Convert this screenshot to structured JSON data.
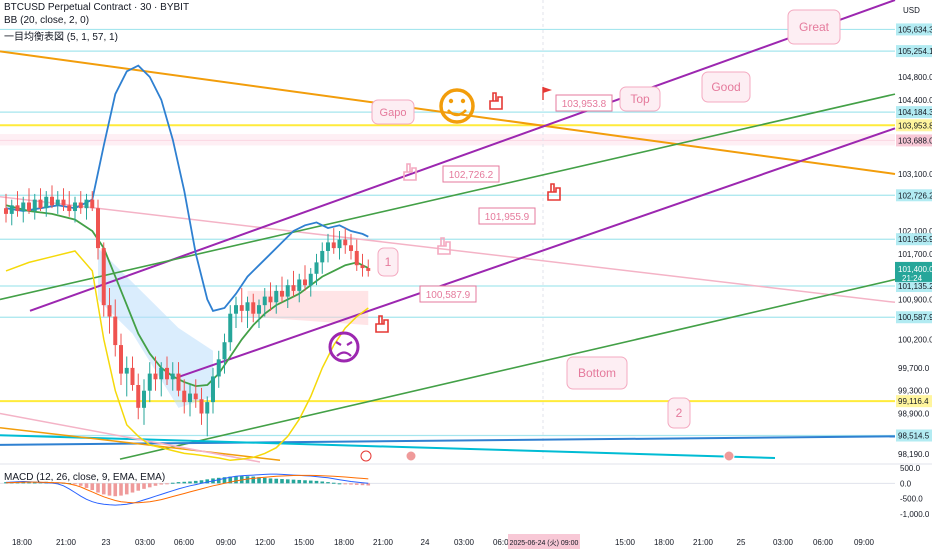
{
  "header": {
    "title": "BTCUSD Perpetual Contract · 30 · BYBIT",
    "indicator_bb": "BB (20, close, 2, 0)",
    "indicator_ichimoku": "一目均衡表図 (5, 1, 57, 1)",
    "indicator_macd": "MACD (12, 26, close, 9, EMA, EMA)"
  },
  "colors": {
    "bg": "#ffffff",
    "candle_up": "#26a69a",
    "candle_down": "#ef5350",
    "bb_upper": "#2f80d1",
    "bb_basis": "#43a047",
    "bb_lower": "#f5d90a",
    "orange_line": "#f29d0b",
    "purple_channel": "#9c27b0",
    "green_line": "#43a047",
    "pink_line": "#f4b3c6",
    "blue_line": "#2f80d1",
    "cyan_line": "#00bcd4",
    "hline_cyan": "#a6e6ee",
    "hline_yellow": "#ffeb3b",
    "hline_pink": "#f8c8d6",
    "axis_text": "#131722"
  },
  "chart_data": {
    "type": "candlestick",
    "symbol": "BTCUSD Perpetual Contract",
    "timeframe": "30",
    "exchange": "BYBIT",
    "y_unit": "USD",
    "ylim": [
      98050,
      106150
    ],
    "y_ticks": [
      104800.0,
      104400.0,
      103100.0,
      102100.0,
      101700.0,
      100900.0,
      100200.0,
      99700.0,
      99300.0,
      98900.0,
      98190.0
    ],
    "price_labels": [
      {
        "value": 105634.3,
        "style": "cyan"
      },
      {
        "value": 105254.1,
        "style": "cyan"
      },
      {
        "value": 104184.3,
        "style": "cyan"
      },
      {
        "value": 103953.8,
        "style": "yellow"
      },
      {
        "value": 103688.0,
        "style": "pink"
      },
      {
        "value": 102726.2,
        "style": "cyan"
      },
      {
        "value": 101955.9,
        "style": "cyan"
      },
      {
        "value": 101135.2,
        "style": "cyan"
      },
      {
        "value": 100587.9,
        "style": "cyan"
      },
      {
        "value": 99116.4,
        "style": "yellow"
      },
      {
        "value": 98514.5,
        "style": "cyan"
      }
    ],
    "current_price": {
      "value": "101,400.0",
      "countdown": "21:24"
    },
    "x_ticks": [
      "18:00",
      "21:00",
      "23",
      "03:00",
      "06:00",
      "09:00",
      "12:00",
      "15:00",
      "18:00",
      "21:00",
      "24",
      "03:00",
      "06:00",
      "09:00",
      "15:00",
      "18:00",
      "21:00",
      "25",
      "03:00",
      "06:00",
      "09:00"
    ],
    "x_highlight": {
      "label": "2025-06-24 (火)",
      "time": "09:00"
    },
    "candles": [
      {
        "o": 102500,
        "h": 102750,
        "l": 102250,
        "c": 102400
      },
      {
        "o": 102400,
        "h": 102650,
        "l": 102200,
        "c": 102550
      },
      {
        "o": 102550,
        "h": 102800,
        "l": 102350,
        "c": 102450
      },
      {
        "o": 102450,
        "h": 102700,
        "l": 102250,
        "c": 102600
      },
      {
        "o": 102600,
        "h": 102850,
        "l": 102400,
        "c": 102450
      },
      {
        "o": 102450,
        "h": 102750,
        "l": 102300,
        "c": 102650
      },
      {
        "o": 102650,
        "h": 102850,
        "l": 102450,
        "c": 102500
      },
      {
        "o": 102500,
        "h": 102800,
        "l": 102350,
        "c": 102700
      },
      {
        "o": 102700,
        "h": 102900,
        "l": 102500,
        "c": 102550
      },
      {
        "o": 102550,
        "h": 102800,
        "l": 102400,
        "c": 102650
      },
      {
        "o": 102650,
        "h": 102850,
        "l": 102450,
        "c": 102550
      },
      {
        "o": 102550,
        "h": 102800,
        "l": 102350,
        "c": 102450
      },
      {
        "o": 102450,
        "h": 102700,
        "l": 102250,
        "c": 102600
      },
      {
        "o": 102600,
        "h": 102800,
        "l": 102400,
        "c": 102500
      },
      {
        "o": 102500,
        "h": 102750,
        "l": 102300,
        "c": 102650
      },
      {
        "o": 102650,
        "h": 102800,
        "l": 102450,
        "c": 102500
      },
      {
        "o": 102500,
        "h": 102650,
        "l": 101600,
        "c": 101800
      },
      {
        "o": 101800,
        "h": 101900,
        "l": 100600,
        "c": 100800
      },
      {
        "o": 100800,
        "h": 101100,
        "l": 100300,
        "c": 100600
      },
      {
        "o": 100600,
        "h": 100900,
        "l": 99900,
        "c": 100100
      },
      {
        "o": 100100,
        "h": 100300,
        "l": 99400,
        "c": 99600
      },
      {
        "o": 99600,
        "h": 99900,
        "l": 99200,
        "c": 99700
      },
      {
        "o": 99700,
        "h": 99900,
        "l": 99300,
        "c": 99400
      },
      {
        "o": 99400,
        "h": 99600,
        "l": 98800,
        "c": 99000
      },
      {
        "o": 99000,
        "h": 99500,
        "l": 98700,
        "c": 99300
      },
      {
        "o": 99300,
        "h": 99800,
        "l": 99100,
        "c": 99600
      },
      {
        "o": 99600,
        "h": 99900,
        "l": 99300,
        "c": 99500
      },
      {
        "o": 99500,
        "h": 99800,
        "l": 99200,
        "c": 99700
      },
      {
        "o": 99700,
        "h": 99900,
        "l": 99400,
        "c": 99500
      },
      {
        "o": 99500,
        "h": 99800,
        "l": 99300,
        "c": 99600
      },
      {
        "o": 99600,
        "h": 99800,
        "l": 99200,
        "c": 99300
      },
      {
        "o": 99300,
        "h": 99500,
        "l": 98900,
        "c": 99100
      },
      {
        "o": 99100,
        "h": 99400,
        "l": 98850,
        "c": 99250
      },
      {
        "o": 99250,
        "h": 99500,
        "l": 99000,
        "c": 99150
      },
      {
        "o": 99150,
        "h": 99350,
        "l": 98700,
        "c": 98900
      },
      {
        "o": 98900,
        "h": 99200,
        "l": 98500,
        "c": 99100
      },
      {
        "o": 99100,
        "h": 99700,
        "l": 98900,
        "c": 99550
      },
      {
        "o": 99550,
        "h": 100000,
        "l": 99350,
        "c": 99850
      },
      {
        "o": 99850,
        "h": 100300,
        "l": 99600,
        "c": 100150
      },
      {
        "o": 100150,
        "h": 100800,
        "l": 100000,
        "c": 100650
      },
      {
        "o": 100650,
        "h": 100950,
        "l": 100400,
        "c": 100800
      },
      {
        "o": 100800,
        "h": 101100,
        "l": 100500,
        "c": 100700
      },
      {
        "o": 100700,
        "h": 100950,
        "l": 100400,
        "c": 100850
      },
      {
        "o": 100850,
        "h": 101000,
        "l": 100500,
        "c": 100650
      },
      {
        "o": 100650,
        "h": 100900,
        "l": 100400,
        "c": 100800
      },
      {
        "o": 100800,
        "h": 101100,
        "l": 100600,
        "c": 100950
      },
      {
        "o": 100950,
        "h": 101200,
        "l": 100700,
        "c": 100850
      },
      {
        "o": 100850,
        "h": 101150,
        "l": 100650,
        "c": 101050
      },
      {
        "o": 101050,
        "h": 101300,
        "l": 100850,
        "c": 100950
      },
      {
        "o": 100950,
        "h": 101250,
        "l": 100750,
        "c": 101150
      },
      {
        "o": 101150,
        "h": 101400,
        "l": 100950,
        "c": 101050
      },
      {
        "o": 101050,
        "h": 101350,
        "l": 100850,
        "c": 101250
      },
      {
        "o": 101250,
        "h": 101500,
        "l": 101050,
        "c": 101150
      },
      {
        "o": 101150,
        "h": 101450,
        "l": 100950,
        "c": 101350
      },
      {
        "o": 101350,
        "h": 101700,
        "l": 101150,
        "c": 101550
      },
      {
        "o": 101550,
        "h": 101900,
        "l": 101350,
        "c": 101750
      },
      {
        "o": 101750,
        "h": 102050,
        "l": 101550,
        "c": 101900
      },
      {
        "o": 101900,
        "h": 102150,
        "l": 101700,
        "c": 101800
      },
      {
        "o": 101800,
        "h": 102100,
        "l": 101600,
        "c": 101950
      },
      {
        "o": 101950,
        "h": 102150,
        "l": 101700,
        "c": 101850
      },
      {
        "o": 101850,
        "h": 102050,
        "l": 101600,
        "c": 101750
      },
      {
        "o": 101750,
        "h": 101950,
        "l": 101400,
        "c": 101500
      },
      {
        "o": 101500,
        "h": 101700,
        "l": 101300,
        "c": 101450
      },
      {
        "o": 101450,
        "h": 101600,
        "l": 101300,
        "c": 101400
      }
    ],
    "bands": {
      "upper": [
        [
          0,
          102500
        ],
        [
          3,
          102450
        ],
        [
          6,
          102500
        ],
        [
          9,
          102550
        ],
        [
          12,
          102500
        ],
        [
          15,
          102650
        ],
        [
          17,
          103600
        ],
        [
          19,
          104500
        ],
        [
          21,
          104900
        ],
        [
          23,
          105000
        ],
        [
          25,
          104800
        ],
        [
          27,
          104400
        ],
        [
          29,
          103700
        ],
        [
          31,
          102800
        ],
        [
          33,
          101700
        ],
        [
          35,
          100900
        ],
        [
          36,
          100700
        ],
        [
          38,
          100750
        ],
        [
          40,
          101000
        ],
        [
          42,
          101300
        ],
        [
          44,
          101500
        ],
        [
          46,
          101700
        ],
        [
          48,
          101900
        ],
        [
          50,
          102100
        ],
        [
          52,
          102200
        ],
        [
          54,
          102250
        ],
        [
          56,
          102150
        ],
        [
          58,
          102200
        ],
        [
          60,
          102100
        ],
        [
          62,
          102050
        ],
        [
          63,
          102000
        ]
      ],
      "basis": [
        [
          0,
          102550
        ],
        [
          4,
          102450
        ],
        [
          8,
          102400
        ],
        [
          12,
          102300
        ],
        [
          15,
          102100
        ],
        [
          17,
          101800
        ],
        [
          19,
          101300
        ],
        [
          21,
          100800
        ],
        [
          23,
          100300
        ],
        [
          25,
          99950
        ],
        [
          27,
          99700
        ],
        [
          29,
          99550
        ],
        [
          31,
          99450
        ],
        [
          33,
          99380
        ],
        [
          35,
          99400
        ],
        [
          37,
          99600
        ],
        [
          39,
          99900
        ],
        [
          41,
          100200
        ],
        [
          43,
          100450
        ],
        [
          45,
          100650
        ],
        [
          47,
          100800
        ],
        [
          49,
          100900
        ],
        [
          51,
          101000
        ],
        [
          53,
          101150
        ],
        [
          55,
          101300
        ],
        [
          57,
          101400
        ],
        [
          59,
          101500
        ],
        [
          61,
          101550
        ],
        [
          63,
          101450
        ]
      ],
      "lower": [
        [
          0,
          101400
        ],
        [
          4,
          101550
        ],
        [
          8,
          101650
        ],
        [
          12,
          101750
        ],
        [
          15,
          101400
        ],
        [
          17,
          100200
        ],
        [
          19,
          99300
        ],
        [
          21,
          98700
        ],
        [
          23,
          98500
        ],
        [
          25,
          98350
        ],
        [
          27,
          98300
        ],
        [
          29,
          98250
        ],
        [
          31,
          98200
        ],
        [
          33,
          98180
        ],
        [
          35,
          98150
        ],
        [
          37,
          98120
        ],
        [
          39,
          98080
        ],
        [
          41,
          98100
        ],
        [
          43,
          98130
        ],
        [
          45,
          98200
        ],
        [
          47,
          98300
        ],
        [
          49,
          98500
        ],
        [
          51,
          98800
        ],
        [
          53,
          99200
        ],
        [
          55,
          99700
        ],
        [
          57,
          100100
        ],
        [
          59,
          100400
        ],
        [
          61,
          100600
        ],
        [
          63,
          100750
        ]
      ]
    },
    "macd": {
      "ylim": [
        -1000,
        500
      ],
      "y_ticks": [
        500.0,
        0.0,
        -500.0,
        -1000.0
      ],
      "histogram": [
        40,
        50,
        60,
        50,
        40,
        30,
        40,
        50,
        40,
        30,
        20,
        10,
        -30,
        -80,
        -150,
        -220,
        -300,
        -360,
        -400,
        -420,
        -400,
        -360,
        -300,
        -240,
        -180,
        -130,
        -80,
        -40,
        -10,
        20,
        40,
        50,
        60,
        80,
        100,
        130,
        160,
        180,
        200,
        220,
        230,
        240,
        230,
        220,
        200,
        180,
        160,
        150,
        140,
        130,
        120,
        110,
        100,
        90,
        80,
        60,
        40,
        20,
        0,
        -20,
        -40,
        -50,
        -60,
        -70
      ],
      "macd_line": [
        30,
        40,
        50,
        60,
        50,
        40,
        30,
        20,
        10,
        -20,
        -80,
        -180,
        -300,
        -420,
        -520,
        -600,
        -650,
        -680,
        -700,
        -710,
        -700,
        -680,
        -650,
        -600,
        -540,
        -480,
        -420,
        -360,
        -300,
        -240,
        -180,
        -130,
        -80,
        -40,
        0,
        40,
        80,
        120,
        160,
        200,
        230,
        250,
        260,
        270,
        280,
        290,
        300,
        300,
        290,
        280,
        270,
        260,
        250,
        240,
        220,
        200,
        180,
        150,
        120,
        90,
        60,
        40,
        20,
        0
      ],
      "signal_line": [
        20,
        25,
        30,
        35,
        40,
        40,
        35,
        30,
        25,
        20,
        10,
        -20,
        -60,
        -120,
        -200,
        -280,
        -360,
        -440,
        -500,
        -560,
        -600,
        -620,
        -630,
        -630,
        -620,
        -600,
        -570,
        -530,
        -480,
        -430,
        -380,
        -330,
        -280,
        -230,
        -180,
        -130,
        -80,
        -40,
        0,
        40,
        80,
        110,
        140,
        160,
        180,
        200,
        215,
        230,
        240,
        250,
        255,
        258,
        260,
        258,
        255,
        250,
        240,
        230,
        220,
        205,
        190,
        175,
        160,
        145
      ]
    },
    "annotations": [
      {
        "kind": "callout",
        "label": "Gapo"
      },
      {
        "kind": "callout",
        "label": "Top"
      },
      {
        "kind": "callout",
        "label": "Good"
      },
      {
        "kind": "callout",
        "label": "Great"
      },
      {
        "kind": "callout",
        "label": "Bottom"
      },
      {
        "kind": "callout",
        "label": "1"
      },
      {
        "kind": "callout",
        "label": "2"
      },
      {
        "kind": "price_tag",
        "label": "103,953.8"
      },
      {
        "kind": "price_tag",
        "label": "102,726.2"
      },
      {
        "kind": "price_tag",
        "label": "101,955.9"
      },
      {
        "kind": "price_tag",
        "label": "100,587.9"
      },
      {
        "kind": "emoji",
        "icon": "smiley-face-icon"
      },
      {
        "kind": "emoji",
        "icon": "frown-face-icon"
      },
      {
        "kind": "icon",
        "icon": "hand-pointer-icon"
      },
      {
        "kind": "icon",
        "icon": "flag-icon"
      }
    ]
  }
}
